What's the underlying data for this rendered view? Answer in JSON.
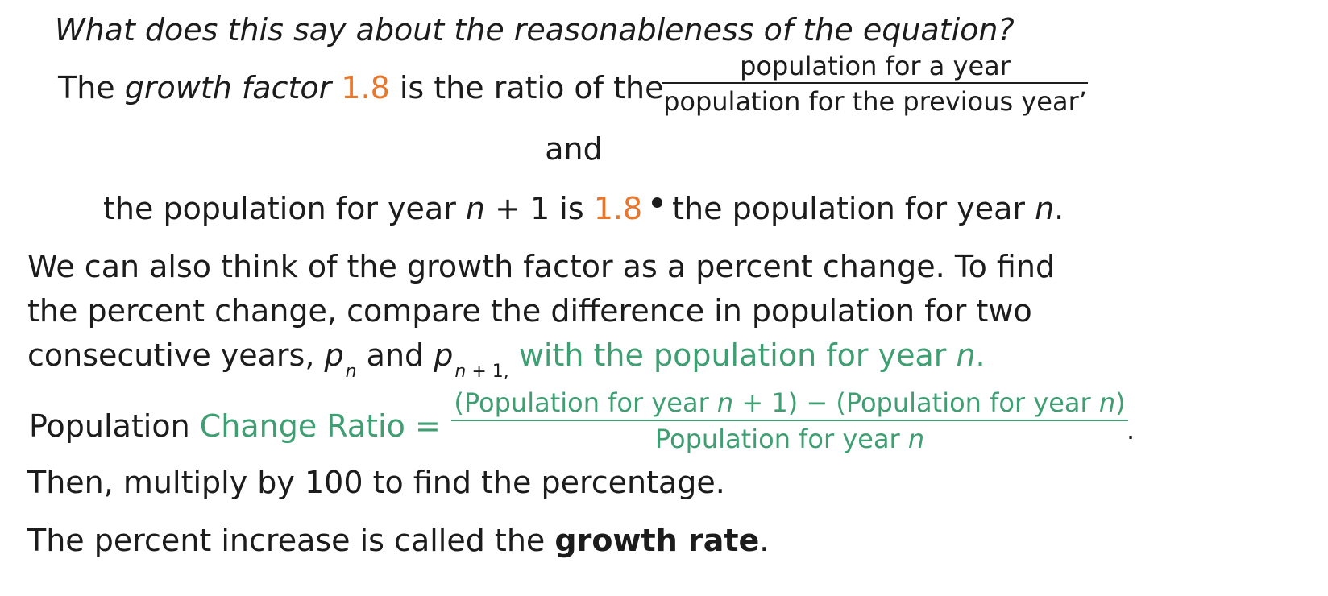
{
  "question": "What does this say about the reasonableness of the equation?",
  "growth_factor_sentence": {
    "the": "The ",
    "term": "growth factor",
    "value": "1.8",
    "rest": " is the ratio of the",
    "fraction_numerator": "population for a year",
    "fraction_denominator": "population for the previous year’"
  },
  "and_text": "and",
  "population_sentence": {
    "part1": "the population for year ",
    "n1": "n",
    "part2": " + 1 is ",
    "value": "1.8",
    "part3": "the population for year ",
    "n2": "n",
    "end": "."
  },
  "paragraph": {
    "line1": "We can also think of the growth factor as a percent change. To find",
    "line2": "the percent change, compare the difference in population for two",
    "line3_start": "consecutive years, ",
    "p1": "p",
    "p1_sub": "n",
    "and": " and ",
    "p2": "p",
    "p2_sub_n": "n",
    "p2_sub_rest": " + 1,",
    "highlight": " with the population for year ",
    "highlight_n": "n",
    "highlight_end": "."
  },
  "ratio_formula": {
    "label_plain": "Population ",
    "label_green": "Change Ratio =",
    "numerator_a": "(Population for year ",
    "numerator_n1": "n",
    "numerator_b": " + 1) − (Population for year ",
    "numerator_n2": "n",
    "numerator_c": ")",
    "denominator_a": "Population for year ",
    "denominator_n": "n",
    "period": "."
  },
  "then_text": "Then, multiply by 100 to find the percentage.",
  "growth_rate_sentence": {
    "start": "The percent increase is called the ",
    "term": "growth rate",
    "end": "."
  },
  "colors": {
    "orange": "#e8772e",
    "green": "#3f9e72",
    "text": "#1c1c1c"
  }
}
